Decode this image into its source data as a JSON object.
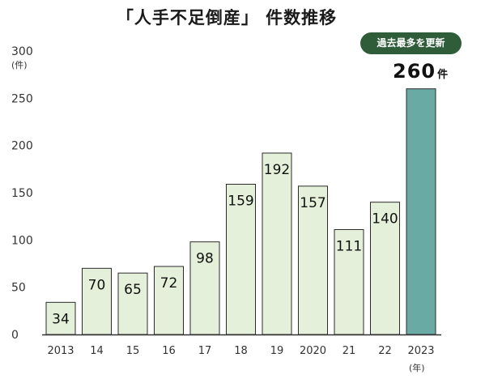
{
  "header": {
    "title": "「人手不足倒産」 件数推移",
    "badge": "過去最多を更新"
  },
  "callout": {
    "value": "260",
    "unit": "件"
  },
  "axis_units": {
    "y": "(件)",
    "x": "(年)"
  },
  "colors": {
    "bar_default": "#e4f0d9",
    "bar_highlight": "#6aaaa4",
    "bar_stroke": "#2b2b2b",
    "badge": "#2f5d3a"
  },
  "chart_data": {
    "type": "bar",
    "title": "「人手不足倒産」 件数推移",
    "categories": [
      "2013",
      "14",
      "15",
      "16",
      "17",
      "18",
      "19",
      "2020",
      "21",
      "22",
      "2023"
    ],
    "values": [
      34,
      70,
      65,
      72,
      98,
      159,
      192,
      157,
      111,
      140,
      260
    ],
    "data_labels": [
      "34",
      "70",
      "65",
      "72",
      "98",
      "159",
      "192",
      "157",
      "111",
      "140",
      ""
    ],
    "highlight_index": 10,
    "ylim": [
      0,
      300
    ],
    "yticks": [
      0,
      50,
      100,
      150,
      200,
      250,
      300
    ],
    "grid": false,
    "xlabel": "(年)",
    "ylabel": "(件)"
  }
}
